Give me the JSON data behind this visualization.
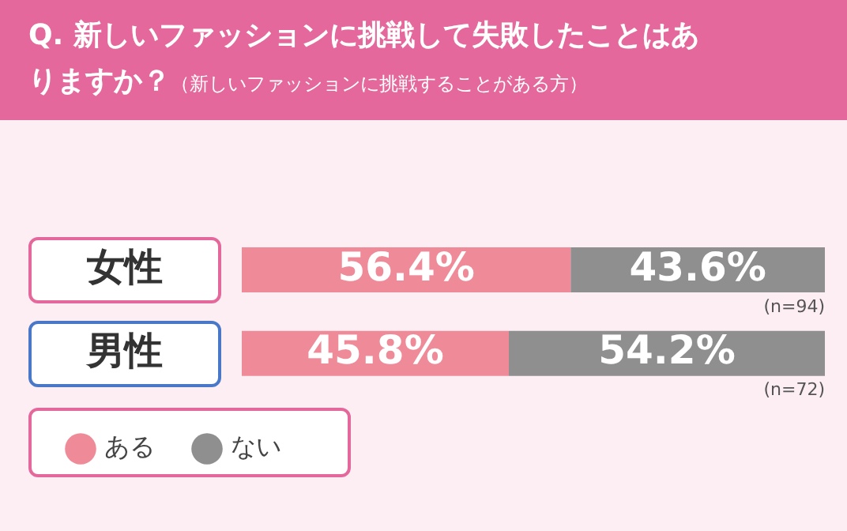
{
  "chart_data": {
    "type": "bar",
    "orientation": "horizontal",
    "stacked": true,
    "title": "Q. 新しいファッションに挑戦して失敗したことはありますか？",
    "subtitle": "（新しいファッションに挑戦することがある方）",
    "categories": [
      "女性",
      "男性"
    ],
    "series": [
      {
        "name": "ある",
        "color": "#ef8b98",
        "values": [
          56.4,
          45.8
        ],
        "value_labels": [
          "56.4%",
          "45.8%"
        ]
      },
      {
        "name": "ない",
        "color": "#8f8f8f",
        "values": [
          43.6,
          54.2
        ],
        "value_labels": [
          "43.6%",
          "54.2%"
        ]
      }
    ],
    "xlim": [
      0,
      100
    ],
    "tick_labels": "y",
    "legend": "bottom left",
    "annotations": [
      "(n=94)",
      "(n=72)"
    ]
  }
}
